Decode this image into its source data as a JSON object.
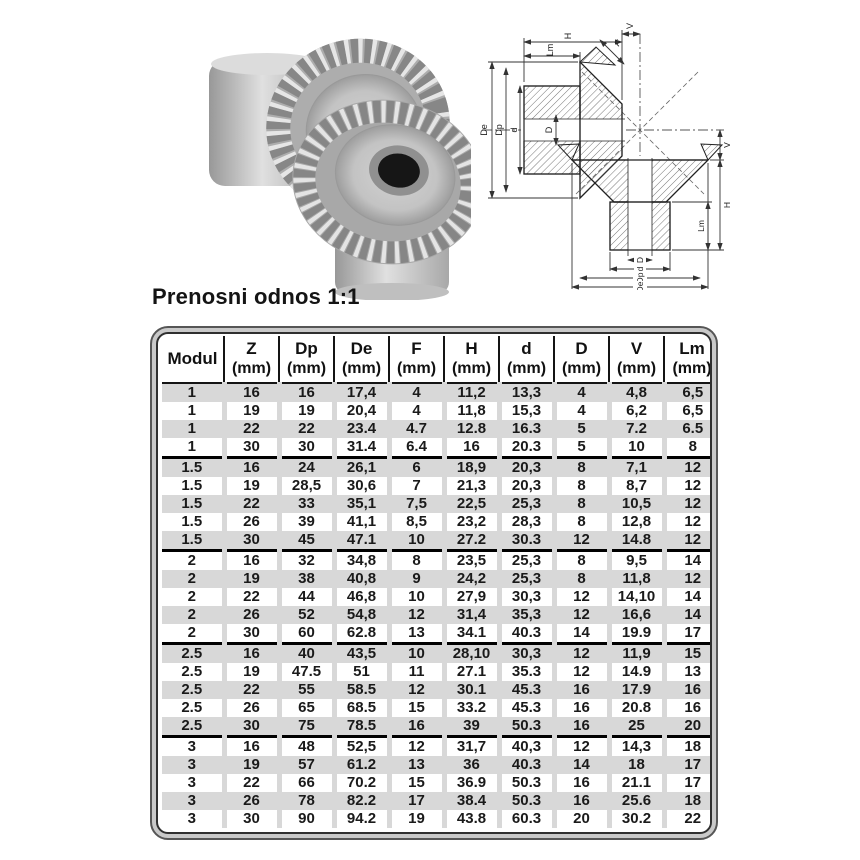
{
  "title": "Prenosni odnos 1:1",
  "photo": {
    "alt": "Two meshing steel bevel gears"
  },
  "drawing": {
    "labels": {
      "de": "De",
      "dp": "Dp",
      "d": "d",
      "bore": "D",
      "h": "H",
      "lm": "Lm",
      "f": "F",
      "v": "V"
    }
  },
  "table": {
    "modul_header": "Modul",
    "unit": "(mm)",
    "columns": [
      "Z",
      "Dp",
      "De",
      "F",
      "H",
      "d",
      "D",
      "V",
      "Lm"
    ],
    "groups": [
      {
        "modul": "1",
        "rows": [
          [
            "16",
            "16",
            "17,4",
            "4",
            "11,2",
            "13,3",
            "4",
            "4,8",
            "6,5"
          ],
          [
            "19",
            "19",
            "20,4",
            "4",
            "11,8",
            "15,3",
            "4",
            "6,2",
            "6,5"
          ],
          [
            "22",
            "22",
            "23.4",
            "4.7",
            "12.8",
            "16.3",
            "5",
            "7.2",
            "6.5"
          ],
          [
            "30",
            "30",
            "31.4",
            "6.4",
            "16",
            "20.3",
            "5",
            "10",
            "8"
          ]
        ]
      },
      {
        "modul": "1.5",
        "rows": [
          [
            "16",
            "24",
            "26,1",
            "6",
            "18,9",
            "20,3",
            "8",
            "7,1",
            "12"
          ],
          [
            "19",
            "28,5",
            "30,6",
            "7",
            "21,3",
            "20,3",
            "8",
            "8,7",
            "12"
          ],
          [
            "22",
            "33",
            "35,1",
            "7,5",
            "22,5",
            "25,3",
            "8",
            "10,5",
            "12"
          ],
          [
            "26",
            "39",
            "41,1",
            "8,5",
            "23,2",
            "28,3",
            "8",
            "12,8",
            "12"
          ],
          [
            "30",
            "45",
            "47.1",
            "10",
            "27.2",
            "30.3",
            "12",
            "14.8",
            "12"
          ]
        ]
      },
      {
        "modul": "2",
        "rows": [
          [
            "16",
            "32",
            "34,8",
            "8",
            "23,5",
            "25,3",
            "8",
            "9,5",
            "14"
          ],
          [
            "19",
            "38",
            "40,8",
            "9",
            "24,2",
            "25,3",
            "8",
            "11,8",
            "12"
          ],
          [
            "22",
            "44",
            "46,8",
            "10",
            "27,9",
            "30,3",
            "12",
            "14,10",
            "14"
          ],
          [
            "26",
            "52",
            "54,8",
            "12",
            "31,4",
            "35,3",
            "12",
            "16,6",
            "14"
          ],
          [
            "30",
            "60",
            "62.8",
            "13",
            "34.1",
            "40.3",
            "14",
            "19.9",
            "17"
          ]
        ]
      },
      {
        "modul": "2.5",
        "rows": [
          [
            "16",
            "40",
            "43,5",
            "10",
            "28,10",
            "30,3",
            "12",
            "11,9",
            "15"
          ],
          [
            "19",
            "47.5",
            "51",
            "11",
            "27.1",
            "35.3",
            "12",
            "14.9",
            "13"
          ],
          [
            "22",
            "55",
            "58.5",
            "12",
            "30.1",
            "45.3",
            "16",
            "17.9",
            "16"
          ],
          [
            "26",
            "65",
            "68.5",
            "15",
            "33.2",
            "45.3",
            "16",
            "20.8",
            "16"
          ],
          [
            "30",
            "75",
            "78.5",
            "16",
            "39",
            "50.3",
            "16",
            "25",
            "20"
          ]
        ]
      },
      {
        "modul": "3",
        "rows": [
          [
            "16",
            "48",
            "52,5",
            "12",
            "31,7",
            "40,3",
            "12",
            "14,3",
            "18"
          ],
          [
            "19",
            "57",
            "61.2",
            "13",
            "36",
            "40.3",
            "14",
            "18",
            "17"
          ],
          [
            "22",
            "66",
            "70.2",
            "15",
            "36.9",
            "50.3",
            "16",
            "21.1",
            "17"
          ],
          [
            "26",
            "78",
            "82.2",
            "17",
            "38.4",
            "50.3",
            "16",
            "25.6",
            "18"
          ],
          [
            "30",
            "90",
            "94.2",
            "19",
            "43.8",
            "60.3",
            "20",
            "30.2",
            "22"
          ]
        ]
      }
    ]
  },
  "colors": {
    "row_gray": "#d8d8d8",
    "frame_gray": "#c9c9c9",
    "frame_line": "#3f3f3f",
    "text": "#111111",
    "steel_light": "#e9e9e9",
    "steel_mid": "#bdbdbd",
    "steel_dark": "#8c8c8c",
    "bore": "#151515"
  }
}
